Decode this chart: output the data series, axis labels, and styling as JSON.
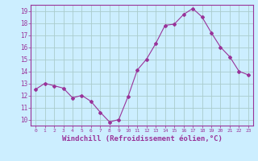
{
  "x": [
    0,
    1,
    2,
    3,
    4,
    5,
    6,
    7,
    8,
    9,
    10,
    11,
    12,
    13,
    14,
    15,
    16,
    17,
    18,
    19,
    20,
    21,
    22,
    23
  ],
  "y": [
    12.5,
    13.0,
    12.8,
    12.6,
    11.8,
    12.0,
    11.5,
    10.6,
    9.8,
    10.0,
    11.9,
    14.1,
    15.0,
    16.3,
    17.8,
    17.9,
    18.7,
    19.2,
    18.5,
    17.2,
    16.0,
    15.2,
    14.0,
    13.7
  ],
  "line_color": "#993399",
  "marker": "D",
  "marker_size": 2,
  "bg_color": "#cceeff",
  "grid_color": "#aacccc",
  "xlabel": "Windchill (Refroidissement éolien,°C)",
  "ylim": [
    9.5,
    19.5
  ],
  "xlim": [
    -0.5,
    23.5
  ],
  "yticks": [
    10,
    11,
    12,
    13,
    14,
    15,
    16,
    17,
    18,
    19
  ],
  "xticks": [
    0,
    1,
    2,
    3,
    4,
    5,
    6,
    7,
    8,
    9,
    10,
    11,
    12,
    13,
    14,
    15,
    16,
    17,
    18,
    19,
    20,
    21,
    22,
    23
  ],
  "tick_color": "#993399",
  "spine_color": "#993399"
}
